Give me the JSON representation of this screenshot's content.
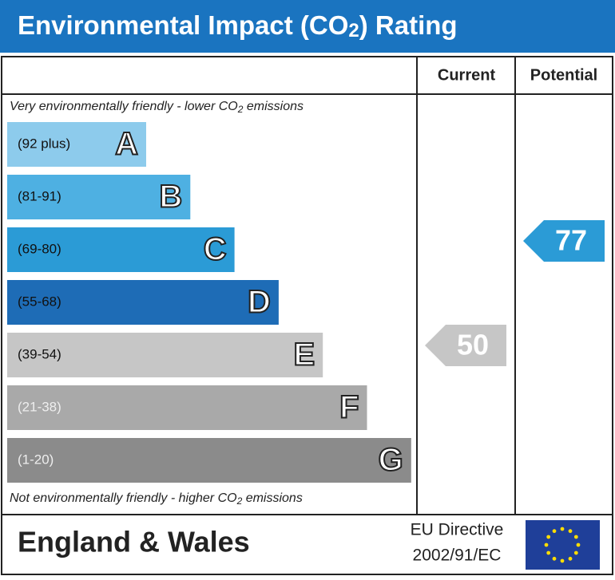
{
  "header": {
    "title": [
      "Environmental Impact (CO",
      "2",
      ") Rating"
    ]
  },
  "columns": {
    "current": "Current",
    "potential": "Potential"
  },
  "top_note": [
    "Very environmentally friendly - lower CO",
    "2",
    " emissions"
  ],
  "bottom_note": [
    "Not environmentally friendly - higher CO",
    "2",
    " emissions"
  ],
  "bands": [
    {
      "range": "(92 plus)",
      "letter": "A",
      "color": "#8dcbec"
    },
    {
      "range": "(81-91)",
      "letter": "B",
      "color": "#4eb0e2"
    },
    {
      "range": "(69-80)",
      "letter": "C",
      "color": "#2b9bd6"
    },
    {
      "range": "(55-68)",
      "letter": "D",
      "color": "#1e6cb6"
    },
    {
      "range": "(39-54)",
      "letter": "E",
      "color": "#c6c6c6"
    },
    {
      "range": "(21-38)",
      "letter": "F",
      "color": "#a9a9a9"
    },
    {
      "range": "(1-20)",
      "letter": "G",
      "color": "#8b8b8b"
    }
  ],
  "current": {
    "value": 50,
    "color": "#c6c6c6"
  },
  "potential": {
    "value": 77,
    "color": "#2b9bd6"
  },
  "footer": {
    "region": "England & Wales",
    "directive": [
      "EU Directive",
      "2002/91/EC"
    ]
  }
}
